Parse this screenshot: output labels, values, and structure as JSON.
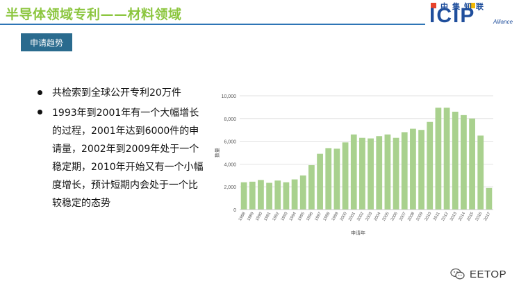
{
  "header": {
    "title": "半导体领域专利——材料领域",
    "logo_cn": "中集知联",
    "logo_main": "ICIP",
    "logo_sub": "Alliance"
  },
  "badge_label": "申请趋势",
  "bullets": [
    "共检索到全球公开专利20万件",
    "1993年到2001年有一个大幅增长的过程，2001年达到6000件的申请量，2002年到2009年处于一个稳定期，2010年开始又有一个小幅度增长，预计短期内会处于一个比较稳定的态势"
  ],
  "chart_data": {
    "type": "bar",
    "title": "",
    "xlabel": "申请年",
    "ylabel": "数量",
    "ylim": [
      0,
      10000
    ],
    "yticks": [
      "0",
      "2,000",
      "4,000",
      "6,000",
      "8,000",
      "10,000"
    ],
    "categories": [
      "1988",
      "1989",
      "1990",
      "1991",
      "1992",
      "1993",
      "1994",
      "1995",
      "1996",
      "1997",
      "1998",
      "1999",
      "2000",
      "2001",
      "2002",
      "2003",
      "2004",
      "2005",
      "2006",
      "2007",
      "2008",
      "2009",
      "2010",
      "2011",
      "2012",
      "2013",
      "2014",
      "2015",
      "2016",
      "2017"
    ],
    "values": [
      2400,
      2450,
      2600,
      2350,
      2550,
      2400,
      2650,
      3000,
      3900,
      4900,
      5400,
      5350,
      5900,
      6600,
      6300,
      6250,
      6450,
      6600,
      6300,
      6800,
      7100,
      7000,
      7700,
      8950,
      8950,
      8600,
      8300,
      8000,
      6500,
      1900
    ],
    "bar_color": "#a9d18e",
    "grid": true
  },
  "watermark": {
    "text": "EETOP",
    "icon": "wechat-icon"
  }
}
